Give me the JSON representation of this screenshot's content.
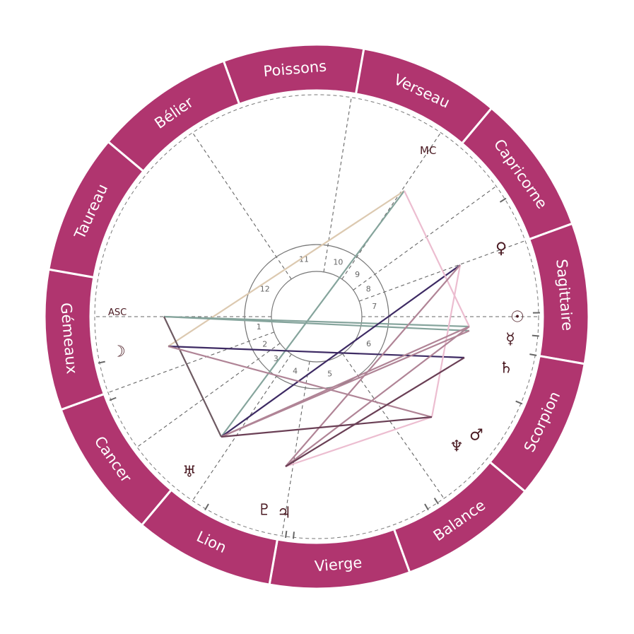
{
  "colors": {
    "ring": "#B0356F",
    "ring_divider": "#ffffff",
    "glyph": "#4a1a22",
    "house_line": "#555555",
    "aspect_beige": "#dcc9b0",
    "aspect_teal": "#85a49c",
    "aspect_greybrown": "#6e5a62",
    "aspect_purple": "#3d2a63",
    "aspect_pink": "#ecbdd0",
    "aspect_mauve": "#b08496",
    "aspect_darkmauve": "#6a3f55"
  },
  "signs": [
    "Poissons",
    "Verseau",
    "Capricorne",
    "Sagittaire",
    "Scorpion",
    "Balance",
    "Vierge",
    "Lion",
    "Cancer",
    "Gémeaux",
    "Taureau",
    "Bélier"
  ],
  "houses": [
    "1",
    "2",
    "3",
    "4",
    "5",
    "6",
    "7",
    "8",
    "9",
    "10",
    "11",
    "12"
  ],
  "axes": {
    "asc": "ASC",
    "mc": "MC"
  },
  "planets": [
    {
      "name": "venus",
      "glyph": "♀"
    },
    {
      "name": "sun",
      "glyph": "☉"
    },
    {
      "name": "mercury",
      "glyph": "☿"
    },
    {
      "name": "saturn",
      "glyph": "♄"
    },
    {
      "name": "neptune",
      "glyph": "♆"
    },
    {
      "name": "mars",
      "glyph": "♂"
    },
    {
      "name": "uranus",
      "glyph": "♅"
    },
    {
      "name": "pluto",
      "glyph": "♇"
    },
    {
      "name": "jupiter",
      "glyph": "♃"
    },
    {
      "name": "moon",
      "glyph": "☽"
    }
  ]
}
